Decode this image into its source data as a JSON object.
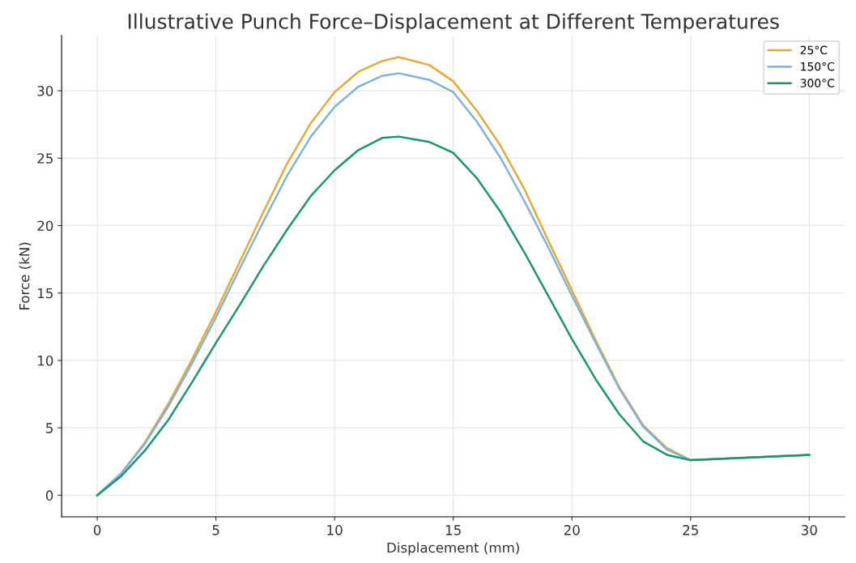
{
  "chart_data": {
    "type": "line",
    "title": "Illustrative Punch Force–Displacement at Different Temperatures",
    "xlabel": "Displacement (mm)",
    "ylabel": "Force (kN)",
    "x": [
      0,
      1,
      2,
      3,
      4,
      5,
      6,
      7,
      8,
      9,
      10,
      11,
      12,
      12.7,
      14,
      15,
      16,
      17,
      18,
      19,
      20,
      21,
      22,
      23,
      24,
      25,
      30
    ],
    "series": [
      {
        "name": "25°C",
        "color": "#e3a93b",
        "values": [
          0,
          1.6,
          3.9,
          6.8,
          10.1,
          13.6,
          17.3,
          21.0,
          24.6,
          27.6,
          29.9,
          31.4,
          32.2,
          32.5,
          31.9,
          30.7,
          28.5,
          25.9,
          22.7,
          18.9,
          15.2,
          11.5,
          8.0,
          5.2,
          3.5,
          2.6,
          3.0
        ]
      },
      {
        "name": "150°C",
        "color": "#7fb3d9",
        "values": [
          0,
          1.6,
          3.8,
          6.6,
          9.8,
          13.2,
          16.8,
          20.3,
          23.7,
          26.6,
          28.8,
          30.3,
          31.1,
          31.3,
          30.8,
          29.9,
          27.7,
          25.0,
          21.8,
          18.4,
          14.8,
          11.3,
          7.9,
          5.1,
          3.4,
          2.6,
          3.0
        ]
      },
      {
        "name": "300°C",
        "color": "#1c9473",
        "values": [
          0,
          1.4,
          3.3,
          5.6,
          8.4,
          11.3,
          14.1,
          17.0,
          19.7,
          22.2,
          24.1,
          25.6,
          26.5,
          26.6,
          26.2,
          25.4,
          23.5,
          21.0,
          18.0,
          14.8,
          11.6,
          8.6,
          6.0,
          4.0,
          3.0,
          2.6,
          3.0
        ]
      }
    ],
    "xlim": [
      -1.5,
      31.5
    ],
    "ylim": [
      -1.6,
      34.1
    ],
    "xticks": [
      0,
      5,
      10,
      15,
      20,
      25,
      30
    ],
    "yticks": [
      0,
      5,
      10,
      15,
      20,
      25,
      30
    ],
    "grid": true,
    "legend": "top right",
    "line_style": "solid",
    "marker": "none"
  }
}
